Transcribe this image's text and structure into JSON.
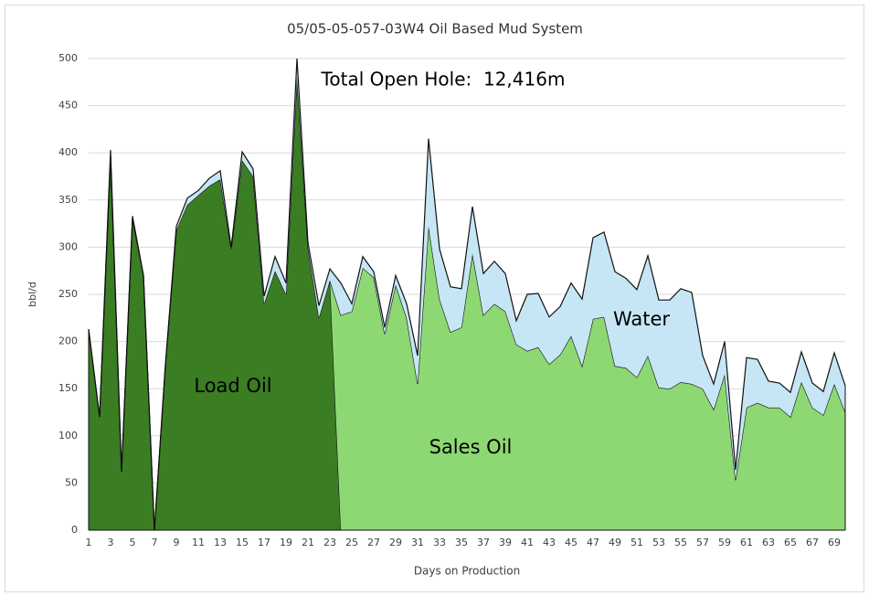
{
  "chart_data": {
    "type": "stacked_area",
    "title": "05/05-05-057-03W4 Oil Based Mud System",
    "ylabel": "bbl/d",
    "xlabel": "Days on Production",
    "annotation": "Total Open Hole:  12,416m",
    "categories": [
      1,
      null,
      3,
      null,
      5,
      null,
      7,
      null,
      9,
      null,
      11,
      null,
      13,
      null,
      15,
      null,
      17,
      null,
      19,
      null,
      21,
      null,
      23,
      null,
      25,
      null,
      27,
      null,
      29,
      null,
      31,
      null,
      33,
      null,
      35,
      null,
      37,
      null,
      39,
      null,
      41,
      null,
      43,
      null,
      45,
      null,
      47,
      null,
      49,
      null,
      51,
      null,
      53,
      null,
      55,
      null,
      57,
      null,
      59,
      null,
      61,
      null,
      63,
      null,
      65,
      null,
      67,
      null,
      69,
      null
    ],
    "series": [
      {
        "name": "Load Oil",
        "color": "#3b7d23",
        "values": [
          213,
          120,
          395,
          62,
          330,
          270,
          0,
          175,
          318,
          345,
          355,
          365,
          372,
          298,
          392,
          375,
          240,
          275,
          250,
          480,
          300,
          225,
          265,
          0,
          null,
          null,
          null,
          null,
          null,
          null,
          null,
          null,
          null,
          null,
          null,
          null,
          null,
          null,
          null,
          null,
          null,
          null,
          null,
          null,
          null,
          null,
          null,
          null,
          null,
          null,
          null,
          null,
          null,
          null,
          null,
          null,
          null,
          null,
          null,
          null,
          null,
          null,
          null,
          null,
          null,
          null,
          null,
          null,
          null,
          null
        ]
      },
      {
        "name": "Sales Oil",
        "color": "#8ed873",
        "values": [
          null,
          null,
          null,
          null,
          null,
          null,
          null,
          null,
          null,
          null,
          null,
          null,
          null,
          null,
          null,
          null,
          null,
          null,
          null,
          null,
          null,
          null,
          0,
          228,
          232,
          278,
          268,
          208,
          260,
          225,
          155,
          322,
          245,
          210,
          215,
          293,
          228,
          240,
          232,
          197,
          190,
          194,
          176,
          186,
          206,
          174,
          224,
          226,
          174,
          172,
          162,
          185,
          151,
          150,
          157,
          155,
          150,
          128,
          165,
          53,
          130,
          135,
          130,
          130,
          120,
          157,
          130,
          122,
          155,
          125
        ]
      },
      {
        "name": "Water",
        "color": "#c6e6f6",
        "values": [
          0,
          0,
          8,
          0,
          3,
          0,
          0,
          0,
          4,
          7,
          5,
          8,
          9,
          2,
          9,
          8,
          8,
          15,
          12,
          20,
          5,
          13,
          12,
          34,
          8,
          12,
          6,
          7,
          10,
          15,
          30,
          93,
          53,
          48,
          41,
          50,
          44,
          45,
          40,
          25,
          60,
          57,
          50,
          51,
          56,
          71,
          86,
          90,
          100,
          95,
          93,
          106,
          93,
          94,
          99,
          97,
          35,
          27,
          35,
          11,
          53,
          46,
          28,
          26,
          26,
          32,
          26,
          25,
          33,
          28
        ]
      }
    ],
    "ylim": [
      0,
      500
    ],
    "yticks": [
      0,
      50,
      100,
      150,
      200,
      250,
      300,
      350,
      400,
      450,
      500
    ],
    "grid": true
  }
}
